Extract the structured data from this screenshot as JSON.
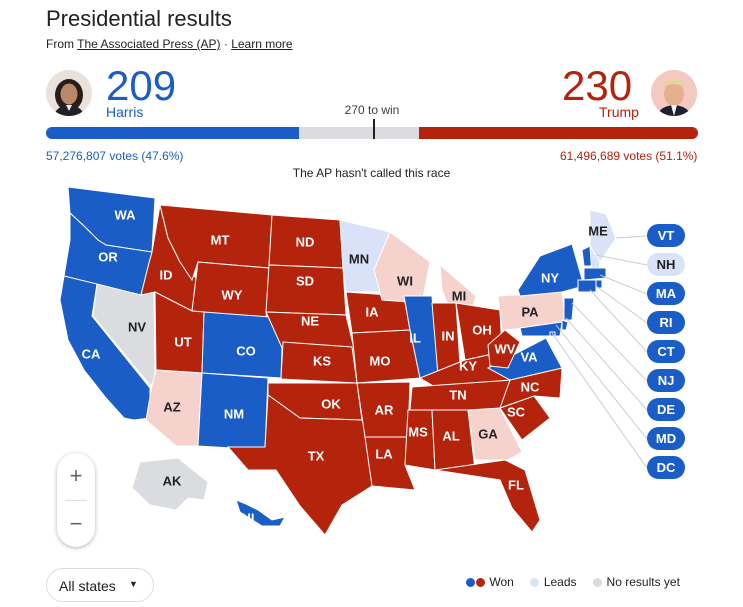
{
  "header": {
    "title": "Presidential results",
    "source_prefix": "From ",
    "source_link": "The Associated Press (AP)",
    "separator": " · ",
    "learn_more": "Learn more"
  },
  "candidates": {
    "harris": {
      "ev": "209",
      "name": "Harris",
      "votes": "57,276,807 votes (47.6%)",
      "color": "#1a5dc7"
    },
    "trump": {
      "ev": "230",
      "name": "Trump",
      "votes": "61,496,689 votes (51.1%)",
      "color": "#b4230c"
    }
  },
  "bar": {
    "to_win_label": "270 to win",
    "total": 538,
    "harris": 209,
    "trump": 230,
    "to_win": 270
  },
  "status": "The AP hasn't called this race",
  "colors": {
    "dem": "#1a5dc7",
    "rep": "#b4230c",
    "dem_lead": "#d9e2f6",
    "rep_lead": "#f5d2cc",
    "none": "#dadce0"
  },
  "states": [
    {
      "abbr": "WA",
      "status": "dem"
    },
    {
      "abbr": "OR",
      "status": "dem"
    },
    {
      "abbr": "CA",
      "status": "dem"
    },
    {
      "abbr": "NV",
      "status": "none"
    },
    {
      "abbr": "ID",
      "status": "rep"
    },
    {
      "abbr": "MT",
      "status": "rep"
    },
    {
      "abbr": "WY",
      "status": "rep"
    },
    {
      "abbr": "UT",
      "status": "rep"
    },
    {
      "abbr": "CO",
      "status": "dem"
    },
    {
      "abbr": "AZ",
      "status": "rep_lead"
    },
    {
      "abbr": "NM",
      "status": "dem"
    },
    {
      "abbr": "ND",
      "status": "rep"
    },
    {
      "abbr": "SD",
      "status": "rep"
    },
    {
      "abbr": "NE",
      "status": "rep"
    },
    {
      "abbr": "KS",
      "status": "rep"
    },
    {
      "abbr": "OK",
      "status": "rep"
    },
    {
      "abbr": "TX",
      "status": "rep"
    },
    {
      "abbr": "MN",
      "status": "dem_lead"
    },
    {
      "abbr": "IA",
      "status": "rep"
    },
    {
      "abbr": "MO",
      "status": "rep"
    },
    {
      "abbr": "AR",
      "status": "rep"
    },
    {
      "abbr": "LA",
      "status": "rep"
    },
    {
      "abbr": "WI",
      "status": "rep_lead"
    },
    {
      "abbr": "IL",
      "status": "dem"
    },
    {
      "abbr": "MI",
      "status": "rep_lead"
    },
    {
      "abbr": "IN",
      "status": "rep"
    },
    {
      "abbr": "OH",
      "status": "rep"
    },
    {
      "abbr": "KY",
      "status": "rep"
    },
    {
      "abbr": "TN",
      "status": "rep"
    },
    {
      "abbr": "MS",
      "status": "rep"
    },
    {
      "abbr": "AL",
      "status": "rep"
    },
    {
      "abbr": "GA",
      "status": "rep_lead"
    },
    {
      "abbr": "FL",
      "status": "rep"
    },
    {
      "abbr": "SC",
      "status": "rep"
    },
    {
      "abbr": "NC",
      "status": "rep"
    },
    {
      "abbr": "VA",
      "status": "dem"
    },
    {
      "abbr": "WV",
      "status": "rep"
    },
    {
      "abbr": "PA",
      "status": "rep_lead"
    },
    {
      "abbr": "NY",
      "status": "dem"
    },
    {
      "abbr": "ME",
      "status": "dem_lead"
    },
    {
      "abbr": "AK",
      "status": "none"
    },
    {
      "abbr": "HI",
      "status": "dem"
    }
  ],
  "small_states": [
    {
      "abbr": "VT",
      "status": "dem"
    },
    {
      "abbr": "NH",
      "status": "dem_lead"
    },
    {
      "abbr": "MA",
      "status": "dem"
    },
    {
      "abbr": "RI",
      "status": "dem"
    },
    {
      "abbr": "CT",
      "status": "dem"
    },
    {
      "abbr": "NJ",
      "status": "dem"
    },
    {
      "abbr": "DE",
      "status": "dem"
    },
    {
      "abbr": "MD",
      "status": "dem"
    },
    {
      "abbr": "DC",
      "status": "dem"
    }
  ],
  "controls": {
    "zoom_in": "+",
    "zoom_out": "−",
    "states_select": "All states"
  },
  "legend": {
    "won": "Won",
    "leads": "Leads",
    "none": "No results yet"
  }
}
